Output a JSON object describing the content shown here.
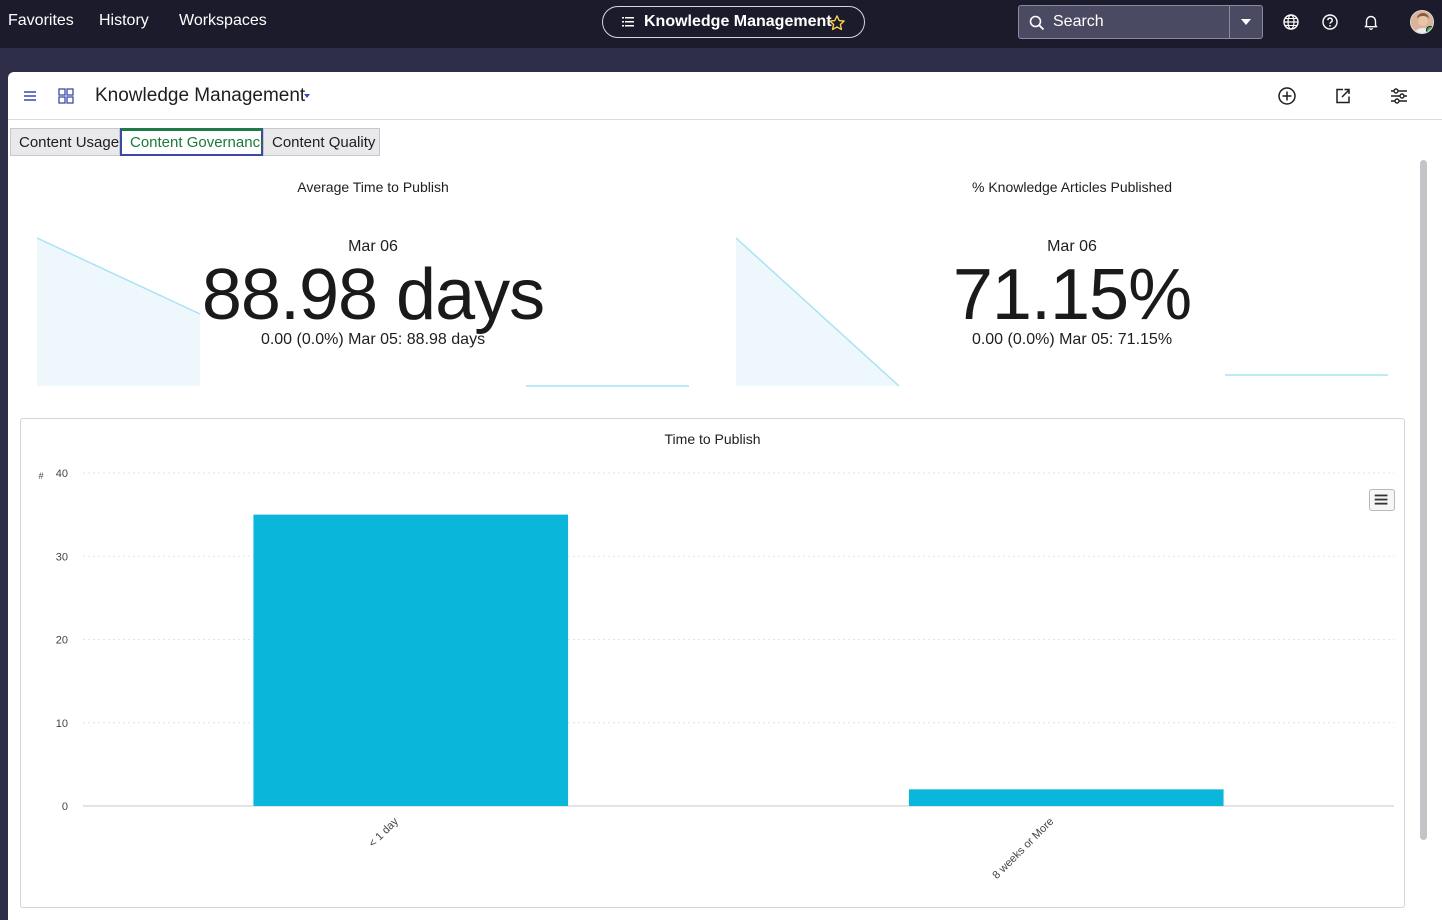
{
  "topnav": {
    "links": [
      "Favorites",
      "History",
      "Workspaces"
    ],
    "current_page": "Knowledge Management",
    "search_placeholder": "Search"
  },
  "dashboard": {
    "title": "Knowledge Management",
    "tabs": [
      "Content Usage",
      "Content Governance",
      "Content Quality"
    ],
    "active_tab": "Content Governance"
  },
  "scores": [
    {
      "title": "Average Time to Publish",
      "date": "Mar 06",
      "value": "88.98 days",
      "delta": "0.00 (0.0%)  Mar 05: 88.98 days"
    },
    {
      "title": "% Knowledge Articles Published",
      "date": "Mar 06",
      "value": "71.15%",
      "delta": "0.00 (0.0%)  Mar 05: 71.15%"
    }
  ],
  "chart": {
    "title": "Time to Publish"
  },
  "chart_data": {
    "type": "bar",
    "title": "Time to Publish",
    "categories": [
      "< 1 day",
      "8 weeks or More"
    ],
    "values": [
      35,
      2
    ],
    "ylabel": "#",
    "xlabel": "",
    "ylim": [
      0,
      40
    ],
    "yticks": [
      0,
      10,
      20,
      30,
      40
    ],
    "grid": true,
    "color": "#0ab7da"
  },
  "colors": {
    "topbar": "#1b1b2b",
    "accent_bar": "#0ab7da",
    "active_tab_text": "#1b7a3a"
  }
}
